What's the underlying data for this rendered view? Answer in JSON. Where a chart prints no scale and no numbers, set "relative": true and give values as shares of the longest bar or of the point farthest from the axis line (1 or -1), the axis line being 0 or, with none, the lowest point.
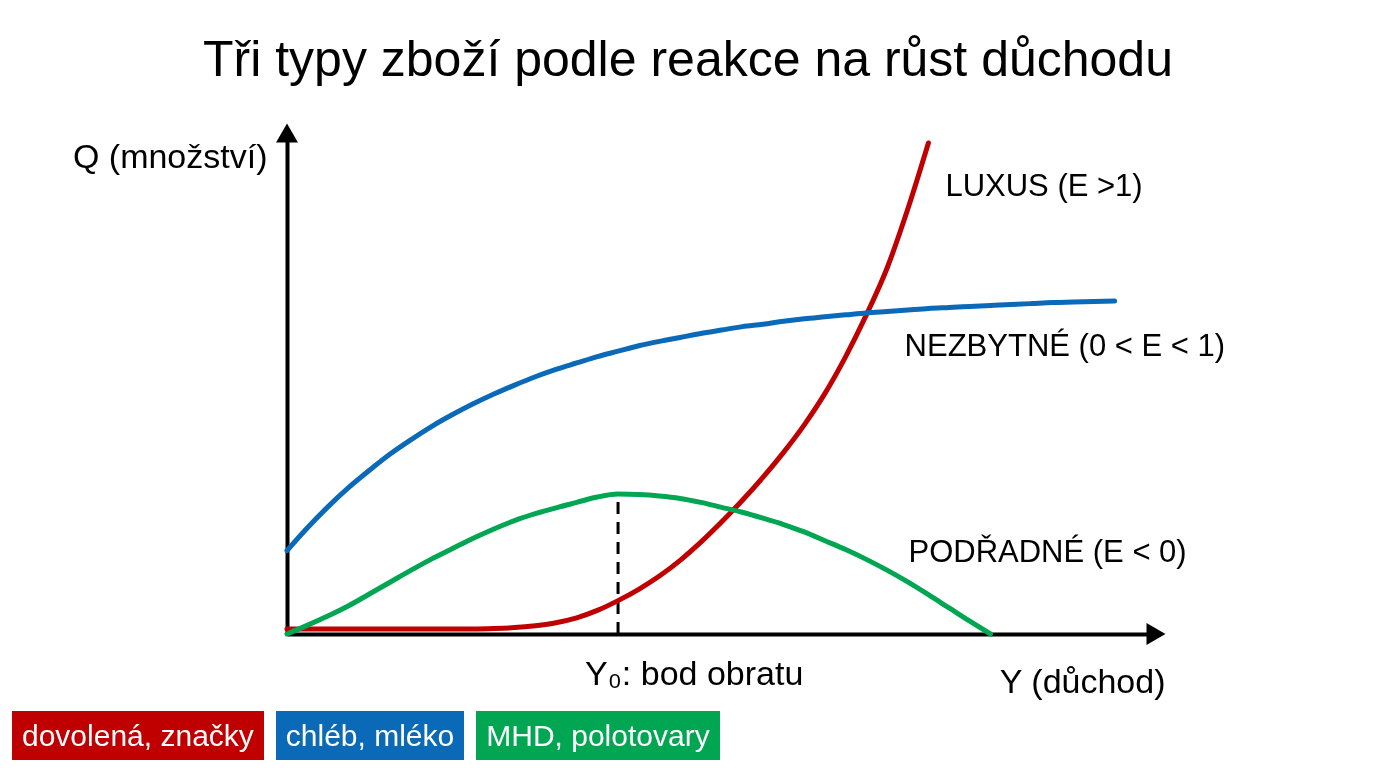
{
  "chart_data": {
    "type": "line",
    "title": "Tři typy zboží podle reakce na růst důchodu",
    "xlabel": "Y (důchod)",
    "ylabel": "Q (množství)",
    "relative": true,
    "categories": [
      null,
      null,
      null,
      null,
      null,
      null,
      null,
      null,
      null,
      null,
      null,
      null,
      null,
      null,
      null,
      null,
      null,
      null,
      null,
      null,
      null,
      null,
      null,
      null,
      null,
      null,
      null,
      null,
      null,
      null,
      null,
      null,
      null,
      null,
      null,
      null,
      null,
      null,
      null,
      null,
      null,
      null,
      null
    ],
    "series": [
      {
        "name": "LUXUS (E >1)",
        "color": "#c00000",
        "values": [
          0.01,
          0.01,
          0.01,
          0.01,
          0.01,
          0.01,
          0.01,
          0.01,
          0.01,
          0.01,
          0.011,
          0.013,
          0.017,
          0.023,
          0.033,
          0.048,
          0.068,
          0.091,
          0.118,
          0.15,
          0.187,
          0.228,
          0.272,
          0.319,
          0.37,
          0.426,
          0.49,
          0.565,
          0.65,
          0.745,
          0.865,
          1.0,
          null,
          null,
          null,
          null,
          null,
          null,
          null,
          null,
          null,
          null,
          null
        ]
      },
      {
        "name": "NEZBYTNÉ (0 < E < 1)",
        "color": "#0a6ab8",
        "values": [
          0.17,
          0.217,
          0.26,
          0.299,
          0.334,
          0.367,
          0.396,
          0.423,
          0.447,
          0.469,
          0.489,
          0.507,
          0.524,
          0.539,
          0.552,
          0.565,
          0.576,
          0.587,
          0.596,
          0.604,
          0.612,
          0.619,
          0.626,
          0.631,
          0.637,
          0.642,
          0.646,
          0.65,
          0.654,
          0.657,
          0.66,
          0.663,
          0.665,
          0.667,
          0.669,
          0.671,
          0.673,
          0.675,
          0.676,
          0.677,
          0.678,
          null,
          null
        ]
      },
      {
        "name": "PODŘADNÉ (E < 0)",
        "color": "#00a651",
        "values": [
          0,
          0.018,
          0.037,
          0.058,
          0.082,
          0.106,
          0.13,
          0.153,
          0.174,
          0.195,
          0.214,
          0.231,
          0.245,
          0.257,
          0.268,
          0.279,
          0.285,
          0.284,
          0.281,
          0.276,
          0.268,
          0.258,
          0.248,
          0.236,
          0.223,
          0.208,
          0.19,
          0.172,
          0.152,
          0.13,
          0.106,
          0.08,
          0.053,
          0.026,
          0,
          null,
          null,
          null,
          null,
          null,
          null,
          null,
          null
        ]
      }
    ],
    "ref_lines": [
      {
        "axis": "x",
        "value": "Y₀: bod obratu",
        "color": "#000000",
        "line_style": "dashed"
      }
    ],
    "annotations": [
      "dovolená, značky",
      "chléb, mléko",
      "MHD, polotovary"
    ],
    "marker": "none",
    "line_style": "solid"
  }
}
